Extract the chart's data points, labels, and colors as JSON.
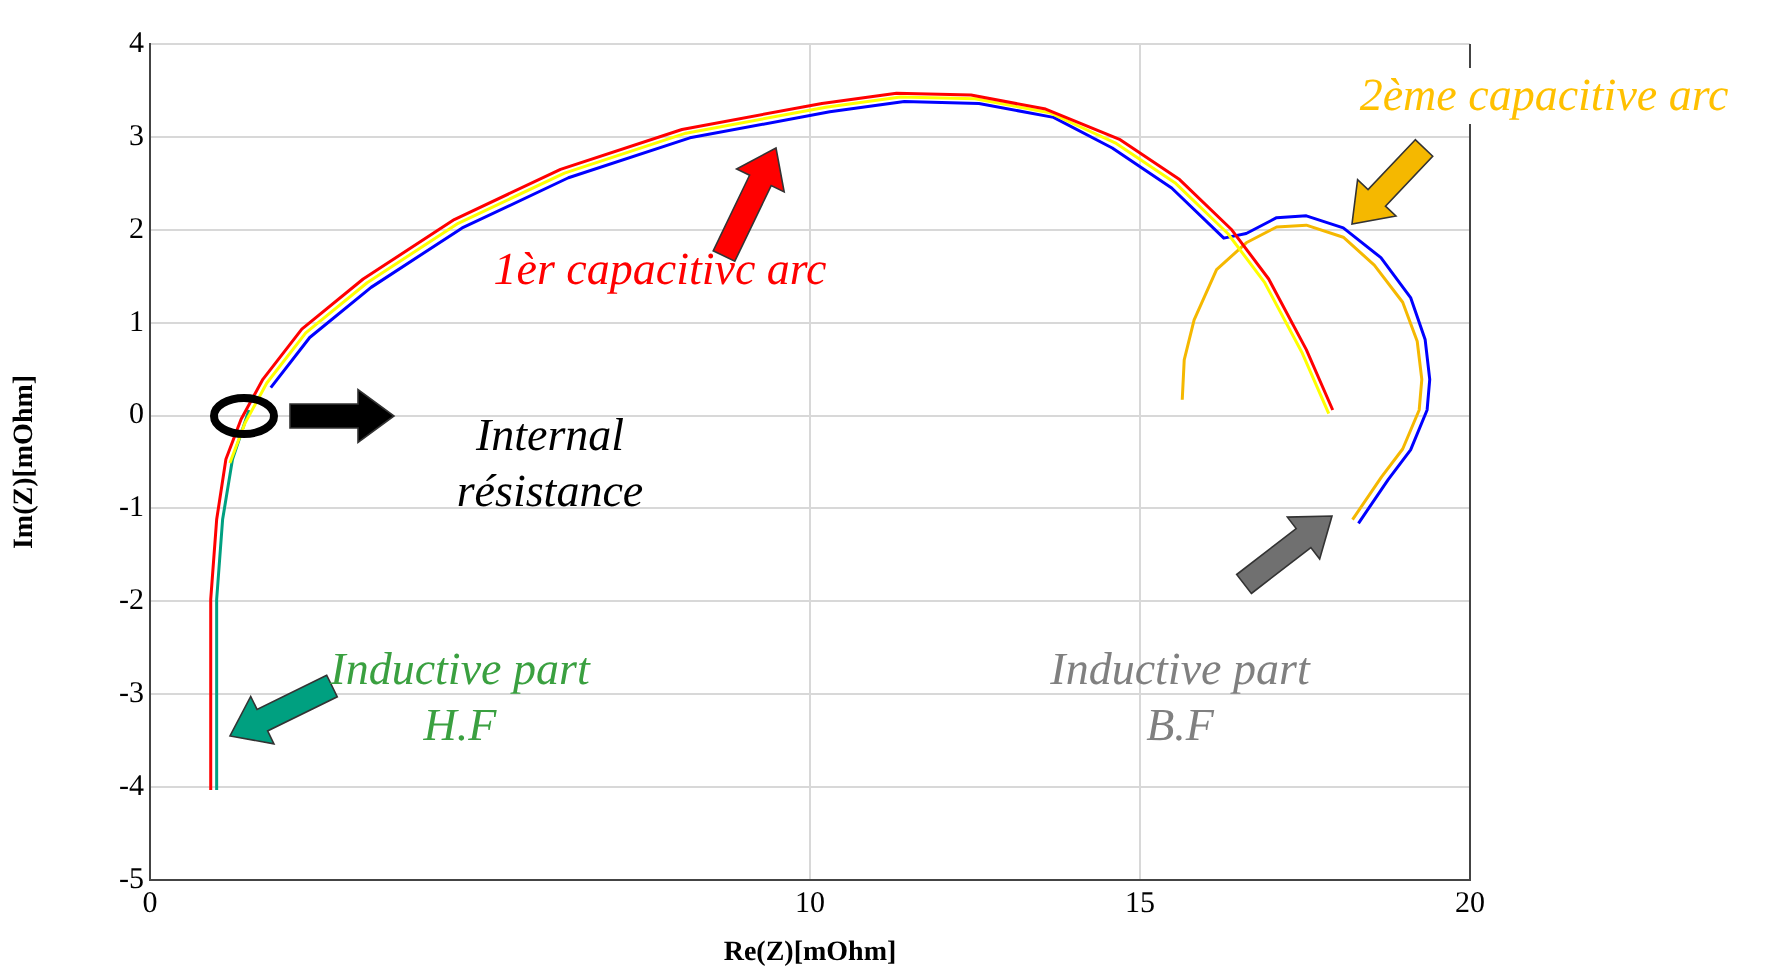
{
  "chart_data": {
    "type": "line",
    "xlabel": "Re(Z)[mOhm]",
    "ylabel": "Im(Z)[mOhm]",
    "xlim": [
      0,
      20
    ],
    "xticks": [
      0,
      10,
      15,
      20
    ],
    "ylim": [
      -5,
      4
    ],
    "yticks": [
      -5,
      -4,
      -3,
      -2,
      -1,
      0,
      1,
      2,
      3,
      4
    ],
    "grid": true,
    "legend": false,
    "marker": "none",
    "line_style": "solid",
    "series": [
      {
        "color": "#ff0000",
        "x": [
          0.92,
          0.92,
          1.01,
          1.15,
          1.38,
          1.71,
          2.3,
          3.23,
          4.61,
          6.22,
          8.06,
          10.18,
          11.31,
          12.44,
          13.57,
          14.7,
          15.6,
          16.39,
          16.95,
          17.52,
          17.92
        ],
        "values": [
          -4.03,
          -1.98,
          -1.12,
          -0.47,
          -0.04,
          0.39,
          0.93,
          1.47,
          2.11,
          2.65,
          3.08,
          3.36,
          3.47,
          3.45,
          3.3,
          2.97,
          2.54,
          2.0,
          1.47,
          0.71,
          0.06
        ]
      },
      {
        "color": "#ffff00",
        "x": [
          1.21,
          1.44,
          1.77,
          2.36,
          3.29,
          4.67,
          6.28,
          8.12,
          10.24,
          11.37,
          12.5,
          13.63,
          14.64,
          15.54,
          16.33,
          16.89,
          17.46,
          17.86
        ],
        "values": [
          -0.51,
          -0.08,
          0.35,
          0.89,
          1.43,
          2.07,
          2.61,
          3.04,
          3.32,
          3.43,
          3.41,
          3.26,
          2.93,
          2.5,
          1.96,
          1.43,
          0.67,
          0.02
        ]
      },
      {
        "color": "#00a080",
        "x": [
          1.01,
          1.01,
          1.1,
          1.25,
          1.5
        ],
        "values": [
          -4.03,
          -1.98,
          -1.12,
          -0.47,
          0.06
        ]
      },
      {
        "color": "#0000ff",
        "x": [
          1.83,
          2.42,
          3.35,
          4.73,
          6.34,
          8.18,
          10.3,
          11.43,
          12.56,
          13.69,
          14.58,
          15.48,
          16.27,
          16.61,
          17.07,
          17.52,
          18.08,
          18.65,
          19.1,
          19.32,
          19.39,
          19.35,
          19.1,
          18.76,
          18.31
        ],
        "values": [
          0.3,
          0.84,
          1.38,
          2.02,
          2.56,
          2.99,
          3.27,
          3.38,
          3.36,
          3.21,
          2.88,
          2.45,
          1.91,
          1.96,
          2.13,
          2.15,
          2.02,
          1.7,
          1.27,
          0.82,
          0.39,
          0.06,
          -0.37,
          -0.69,
          -1.16
        ]
      },
      {
        "color": "#f5b800",
        "x": [
          15.64,
          15.67,
          15.82,
          16.16,
          16.61,
          17.07,
          17.52,
          18.08,
          18.55,
          18.98,
          19.2,
          19.27,
          19.23,
          18.98,
          18.66,
          18.22
        ],
        "values": [
          0.17,
          0.6,
          1.03,
          1.57,
          1.86,
          2.03,
          2.05,
          1.92,
          1.62,
          1.22,
          0.8,
          0.39,
          0.06,
          -0.36,
          -0.66,
          -1.12
        ]
      }
    ],
    "annotations": [
      "1èr capacitivc arc",
      "2ème capacitive arc",
      "Internal\nrésistance",
      "Inductive part\nH.F",
      "Inductive part\nB.F"
    ]
  }
}
